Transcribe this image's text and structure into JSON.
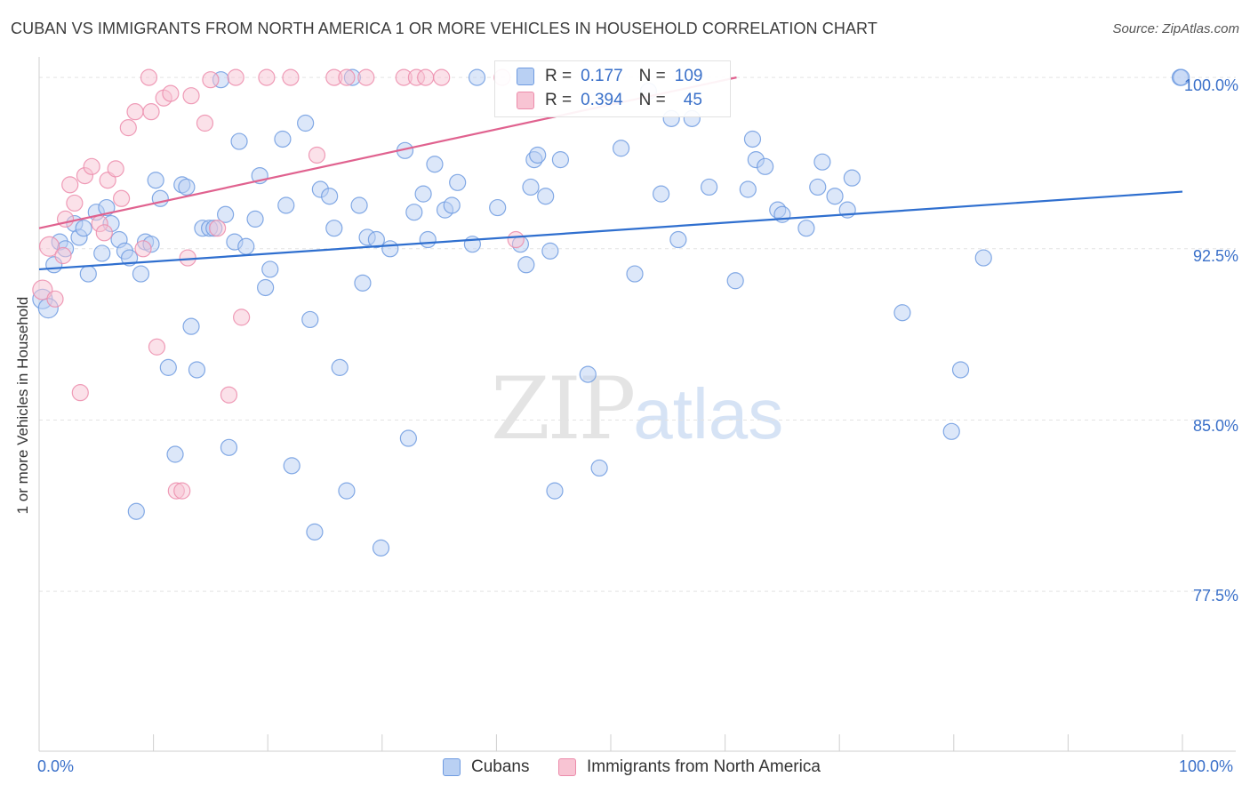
{
  "title": "CUBAN VS IMMIGRANTS FROM NORTH AMERICA 1 OR MORE VEHICLES IN HOUSEHOLD CORRELATION CHART",
  "source": "Source: ZipAtlas.com",
  "watermark": {
    "zip": "ZIP",
    "atlas": "atlas"
  },
  "legend": {
    "rows": [
      {
        "r_label": "R =",
        "r_value": "0.177",
        "n_label": "N =",
        "n_value": "109",
        "color": "#6f9be0"
      },
      {
        "r_label": "R =",
        "r_value": "0.394",
        "n_label": "N =",
        "n_value": "45",
        "color": "#ec8cab"
      }
    ]
  },
  "bottom_legend": {
    "series1": "Cubans",
    "series2": "Immigrants from North America"
  },
  "chart_data": {
    "type": "scatter",
    "title": "CUBAN VS IMMIGRANTS FROM NORTH AMERICA 1 OR MORE VEHICLES IN HOUSEHOLD CORRELATION CHART",
    "xlabel": "",
    "ylabel": "1 or more Vehicles in Household",
    "xlim": [
      0,
      100
    ],
    "ylim": [
      70.5,
      100.9
    ],
    "x_tick_labels": {
      "0": "0.0%",
      "100": "100.0%"
    },
    "y_ticks": [
      100.0,
      92.5,
      85.0,
      77.5
    ],
    "y_tick_labels": [
      "100.0%",
      "92.5%",
      "85.0%",
      "77.5%"
    ],
    "grid": true,
    "series": [
      {
        "name": "Cubans",
        "color": "#6f9be0",
        "fill": "#b9d0f3",
        "trend": {
          "x": [
            0,
            100
          ],
          "y": [
            91.6,
            95.0
          ]
        },
        "points": [
          [
            0.3,
            90.3
          ],
          [
            0.8,
            89.9
          ],
          [
            1.3,
            91.8
          ],
          [
            1.8,
            92.8
          ],
          [
            2.3,
            92.5
          ],
          [
            3.1,
            93.6
          ],
          [
            3.5,
            93.0
          ],
          [
            3.9,
            93.4
          ],
          [
            4.3,
            91.4
          ],
          [
            5.0,
            94.1
          ],
          [
            5.5,
            92.3
          ],
          [
            5.9,
            94.3
          ],
          [
            6.3,
            93.6
          ],
          [
            7.0,
            92.9
          ],
          [
            7.5,
            92.4
          ],
          [
            7.9,
            92.1
          ],
          [
            8.5,
            81.0
          ],
          [
            8.9,
            91.4
          ],
          [
            9.3,
            92.8
          ],
          [
            9.8,
            92.7
          ],
          [
            10.2,
            95.5
          ],
          [
            10.6,
            94.7
          ],
          [
            11.3,
            87.3
          ],
          [
            11.9,
            83.5
          ],
          [
            12.5,
            95.3
          ],
          [
            12.9,
            95.2
          ],
          [
            13.3,
            89.1
          ],
          [
            13.8,
            87.2
          ],
          [
            14.3,
            93.4
          ],
          [
            14.9,
            93.4
          ],
          [
            15.3,
            93.4
          ],
          [
            15.9,
            99.9
          ],
          [
            16.3,
            94.0
          ],
          [
            16.6,
            83.8
          ],
          [
            17.1,
            92.8
          ],
          [
            17.5,
            97.2
          ],
          [
            18.1,
            92.6
          ],
          [
            18.9,
            93.8
          ],
          [
            19.3,
            95.7
          ],
          [
            19.8,
            90.8
          ],
          [
            20.2,
            91.6
          ],
          [
            21.3,
            97.3
          ],
          [
            21.6,
            94.4
          ],
          [
            22.1,
            83.0
          ],
          [
            23.3,
            98.0
          ],
          [
            23.7,
            89.4
          ],
          [
            24.1,
            80.1
          ],
          [
            24.6,
            95.1
          ],
          [
            25.4,
            94.8
          ],
          [
            25.8,
            93.4
          ],
          [
            26.3,
            87.3
          ],
          [
            26.9,
            81.9
          ],
          [
            27.4,
            100.0
          ],
          [
            28.0,
            94.4
          ],
          [
            28.3,
            91.0
          ],
          [
            28.7,
            93.0
          ],
          [
            29.5,
            92.9
          ],
          [
            29.9,
            79.4
          ],
          [
            30.7,
            92.5
          ],
          [
            32.0,
            96.8
          ],
          [
            32.3,
            84.2
          ],
          [
            32.8,
            94.1
          ],
          [
            33.6,
            94.9
          ],
          [
            34.0,
            92.9
          ],
          [
            34.6,
            96.2
          ],
          [
            35.5,
            94.2
          ],
          [
            36.1,
            94.4
          ],
          [
            36.6,
            95.4
          ],
          [
            37.9,
            92.7
          ],
          [
            38.3,
            100.0
          ],
          [
            40.1,
            94.3
          ],
          [
            42.1,
            92.7
          ],
          [
            42.6,
            91.8
          ],
          [
            43.0,
            95.2
          ],
          [
            43.3,
            96.4
          ],
          [
            43.6,
            96.6
          ],
          [
            44.3,
            94.8
          ],
          [
            44.7,
            92.4
          ],
          [
            45.1,
            81.9
          ],
          [
            45.6,
            96.4
          ],
          [
            48.0,
            87.0
          ],
          [
            49.0,
            82.9
          ],
          [
            50.9,
            96.9
          ],
          [
            52.1,
            91.4
          ],
          [
            53.3,
            99.4
          ],
          [
            54.4,
            94.9
          ],
          [
            55.3,
            98.2
          ],
          [
            55.9,
            92.9
          ],
          [
            57.1,
            98.2
          ],
          [
            58.6,
            95.2
          ],
          [
            60.9,
            91.1
          ],
          [
            62.0,
            95.1
          ],
          [
            62.4,
            97.3
          ],
          [
            62.7,
            96.4
          ],
          [
            63.5,
            96.1
          ],
          [
            64.6,
            94.2
          ],
          [
            65.0,
            94.0
          ],
          [
            67.1,
            93.4
          ],
          [
            68.1,
            95.2
          ],
          [
            68.5,
            96.3
          ],
          [
            69.6,
            94.8
          ],
          [
            70.7,
            94.2
          ],
          [
            71.1,
            95.6
          ],
          [
            75.5,
            89.7
          ],
          [
            79.8,
            84.5
          ],
          [
            80.6,
            87.2
          ],
          [
            82.6,
            92.1
          ],
          [
            99.8,
            100.0
          ],
          [
            99.9,
            100.0
          ]
        ]
      },
      {
        "name": "Immigrants from North America",
        "color": "#ec8cab",
        "fill": "#f8c4d3",
        "trend": {
          "x": [
            0,
            61
          ],
          "y": [
            93.4,
            100.0
          ]
        },
        "points": [
          [
            0.3,
            90.7
          ],
          [
            0.9,
            92.6
          ],
          [
            1.4,
            90.3
          ],
          [
            2.1,
            92.2
          ],
          [
            2.3,
            93.8
          ],
          [
            2.7,
            95.3
          ],
          [
            3.1,
            94.5
          ],
          [
            3.6,
            86.2
          ],
          [
            4.0,
            95.7
          ],
          [
            4.6,
            96.1
          ],
          [
            5.3,
            93.6
          ],
          [
            5.7,
            93.2
          ],
          [
            6.0,
            95.5
          ],
          [
            6.7,
            96.0
          ],
          [
            7.2,
            94.7
          ],
          [
            7.8,
            97.8
          ],
          [
            8.4,
            98.5
          ],
          [
            9.1,
            92.5
          ],
          [
            9.6,
            100.0
          ],
          [
            9.8,
            98.5
          ],
          [
            10.3,
            88.2
          ],
          [
            10.9,
            99.1
          ],
          [
            11.5,
            99.3
          ],
          [
            12.0,
            81.9
          ],
          [
            12.5,
            81.9
          ],
          [
            13.0,
            92.1
          ],
          [
            13.3,
            99.2
          ],
          [
            14.5,
            98.0
          ],
          [
            15.0,
            99.9
          ],
          [
            15.6,
            93.4
          ],
          [
            16.6,
            86.1
          ],
          [
            17.2,
            100.0
          ],
          [
            17.7,
            89.5
          ],
          [
            19.9,
            100.0
          ],
          [
            22.0,
            100.0
          ],
          [
            24.3,
            96.6
          ],
          [
            25.8,
            100.0
          ],
          [
            26.9,
            100.0
          ],
          [
            28.6,
            100.0
          ],
          [
            31.9,
            100.0
          ],
          [
            33.0,
            100.0
          ],
          [
            33.8,
            100.0
          ],
          [
            35.2,
            100.0
          ],
          [
            40.5,
            100.0
          ],
          [
            41.7,
            92.9
          ]
        ]
      }
    ]
  }
}
